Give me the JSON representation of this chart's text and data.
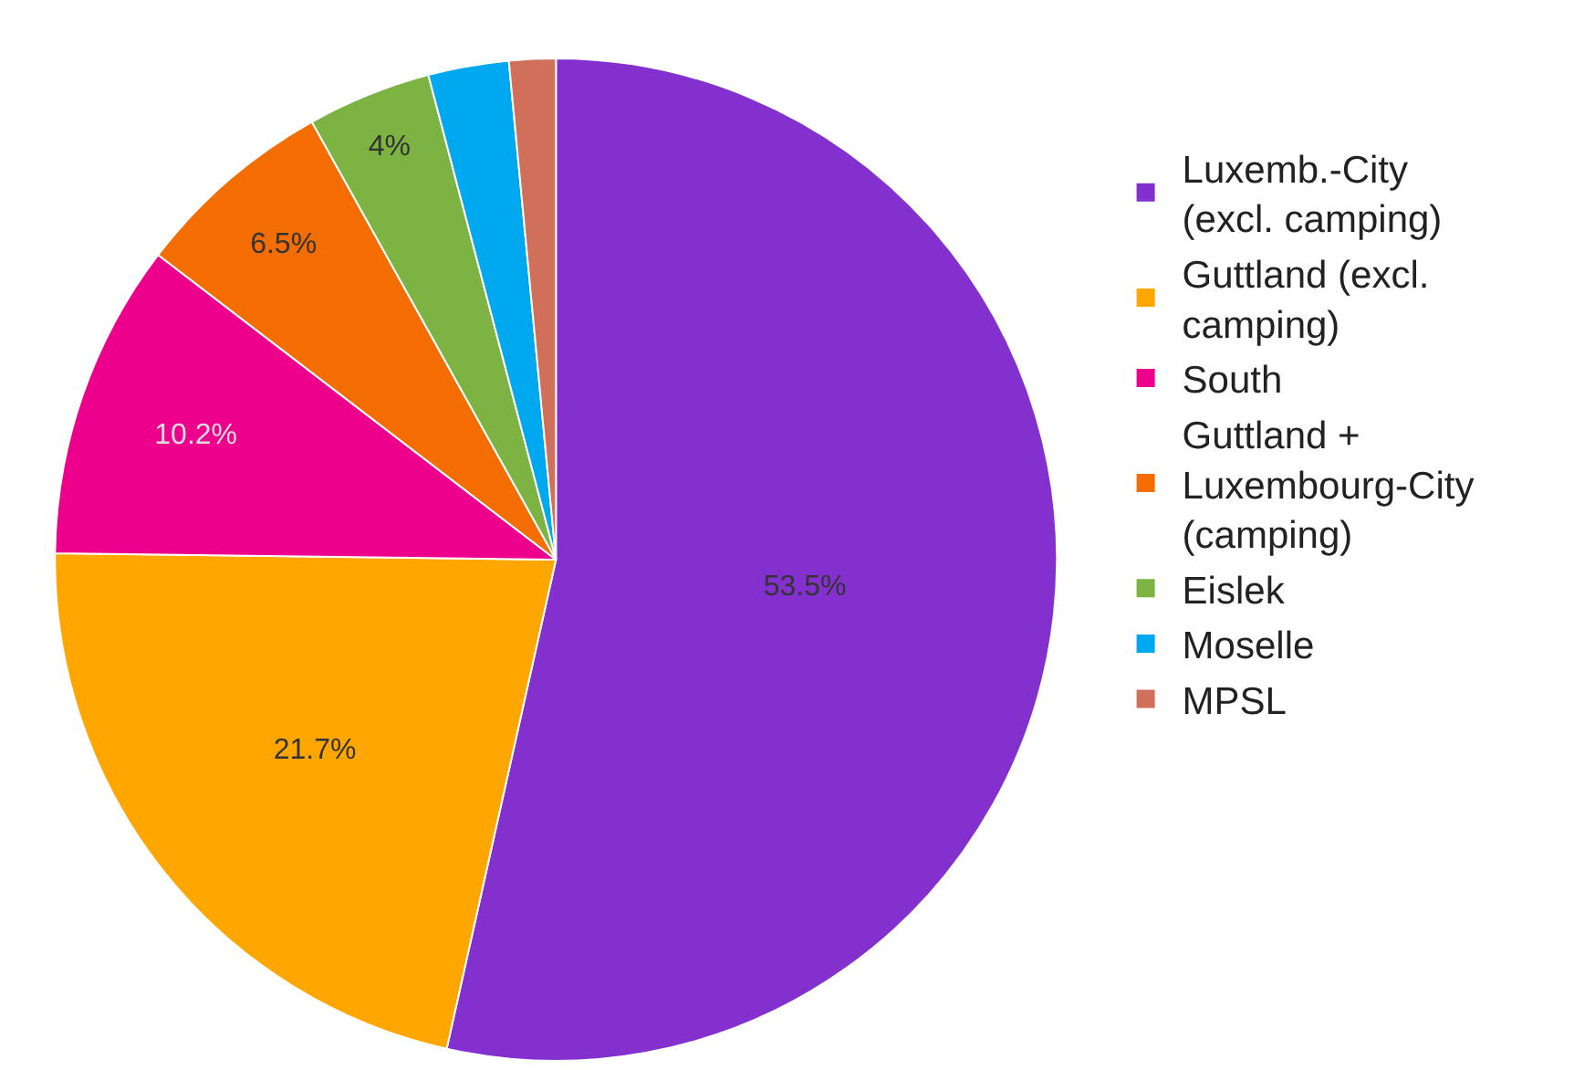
{
  "chart_data": {
    "type": "pie",
    "categories": [
      "Luxemb.-City (excl. camping)",
      "Guttland (excl. camping)",
      "South",
      "Guttland + Luxembourg-City (camping)",
      "Eislek",
      "Moselle",
      "MPSL"
    ],
    "values": [
      53.5,
      21.7,
      10.2,
      6.5,
      4,
      2.6,
      1.5
    ],
    "colors": [
      "#8430ce",
      "#ffa600",
      "#ec008c",
      "#f46d00",
      "#7cb342",
      "#00a8f0",
      "#d06f5a"
    ],
    "value_labels": [
      "53.5%",
      "21.7%",
      "10.2%",
      "6.5%",
      "4%",
      null,
      null
    ],
    "legend": "right"
  }
}
